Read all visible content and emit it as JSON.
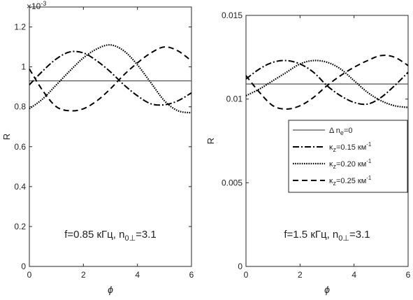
{
  "figure": {
    "left_exponent": "×10",
    "left_exponent_power": "-3"
  },
  "chart_data": [
    {
      "type": "line",
      "id": "left",
      "annotation": "f=0.85 кГц, n",
      "annotation_sub": "0⊥",
      "annotation_tail": "=3.1",
      "xlabel": "ϕ",
      "ylabel": "R",
      "xlim": [
        0,
        6
      ],
      "ylim": [
        0,
        1.3
      ],
      "x_ticks": [
        "0",
        "2",
        "4",
        "6"
      ],
      "x_tick_values": [
        0,
        2,
        4,
        6
      ],
      "y_ticks": [
        "0",
        "0.2",
        "0.4",
        "0.6",
        "0.8",
        "1",
        "1.2"
      ],
      "y_tick_values": [
        0,
        0.2,
        0.4,
        0.6,
        0.8,
        1.0,
        1.2
      ],
      "y_scale_note": "×10^-3",
      "x": [
        0,
        0.5,
        1,
        1.5,
        2,
        2.5,
        3,
        3.5,
        4,
        4.5,
        5,
        5.5,
        6
      ],
      "series": [
        {
          "key": "base",
          "style": "solid",
          "values": [
            0.93,
            0.93,
            0.93,
            0.93,
            0.93,
            0.93,
            0.93,
            0.93,
            0.93,
            0.93,
            0.93,
            0.93,
            0.93
          ]
        },
        {
          "key": "k015",
          "style": "dashdot",
          "values": [
            0.91,
            0.98,
            1.04,
            1.075,
            1.07,
            1.03,
            0.975,
            0.91,
            0.855,
            0.815,
            0.81,
            0.83,
            0.87
          ]
        },
        {
          "key": "k020",
          "style": "dotted",
          "values": [
            0.79,
            0.84,
            0.91,
            0.98,
            1.045,
            1.09,
            1.11,
            1.08,
            1.01,
            0.92,
            0.83,
            0.78,
            0.77
          ]
        },
        {
          "key": "k025",
          "style": "dashed",
          "values": [
            0.99,
            0.88,
            0.8,
            0.78,
            0.79,
            0.83,
            0.89,
            0.96,
            1.02,
            1.07,
            1.1,
            1.08,
            1.03
          ]
        }
      ]
    },
    {
      "type": "line",
      "id": "right",
      "annotation": "f=1.5 кГц, n",
      "annotation_sub": "0⊥",
      "annotation_tail": "=3.1",
      "xlabel": "ϕ",
      "ylabel": "R",
      "xlim": [
        0,
        6
      ],
      "ylim": [
        0,
        0.015
      ],
      "x_ticks": [
        "0",
        "2",
        "4",
        "6"
      ],
      "x_tick_values": [
        0,
        2,
        4,
        6
      ],
      "y_ticks": [
        "0",
        "0.005",
        "0.01",
        "0.015"
      ],
      "y_tick_values": [
        0,
        0.005,
        0.01,
        0.015
      ],
      "x": [
        0,
        0.5,
        1,
        1.5,
        2,
        2.5,
        3,
        3.5,
        4,
        4.5,
        5,
        5.5,
        6
      ],
      "legend": {
        "position": "middle-right",
        "entries": [
          {
            "key": "base",
            "style": "solid",
            "label": "Δ n",
            "sub": "e",
            "tail": "=0"
          },
          {
            "key": "k015",
            "style": "dashdot",
            "label": "κ",
            "sub": "z",
            "tail": "=0.15 км",
            "sup": "-1"
          },
          {
            "key": "k020",
            "style": "dotted",
            "label": "κ",
            "sub": "z",
            "tail": "=0.20 км",
            "sup": "-1"
          },
          {
            "key": "k025",
            "style": "dashed",
            "label": "κ",
            "sub": "z",
            "tail": "=0.25 км",
            "sup": "-1"
          }
        ]
      },
      "series": [
        {
          "key": "base",
          "style": "solid",
          "values": [
            0.0109,
            0.0109,
            0.0109,
            0.0109,
            0.0109,
            0.0109,
            0.0109,
            0.0109,
            0.0109,
            0.0109,
            0.0109,
            0.0109,
            0.0109
          ]
        },
        {
          "key": "k015",
          "style": "dashdot",
          "values": [
            0.0112,
            0.0118,
            0.0122,
            0.0123,
            0.0121,
            0.0116,
            0.0108,
            0.0102,
            0.0098,
            0.0097,
            0.0101,
            0.0108,
            0.0116
          ]
        },
        {
          "key": "k020",
          "style": "dotted",
          "values": [
            0.0102,
            0.0106,
            0.0111,
            0.0116,
            0.0121,
            0.0123,
            0.0122,
            0.0118,
            0.0111,
            0.0104,
            0.0099,
            0.0096,
            0.0095
          ]
        },
        {
          "key": "k025",
          "style": "dashed",
          "values": [
            0.0114,
            0.0104,
            0.0096,
            0.0094,
            0.0096,
            0.0101,
            0.0108,
            0.0114,
            0.0119,
            0.0123,
            0.0126,
            0.0125,
            0.012
          ]
        }
      ]
    }
  ]
}
